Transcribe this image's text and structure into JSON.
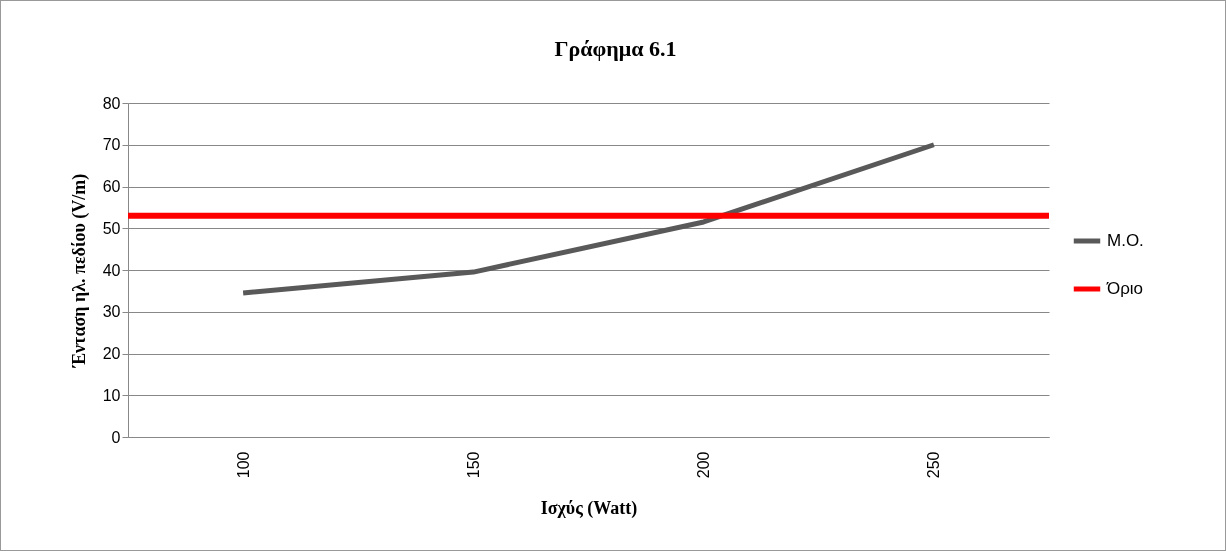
{
  "chart_data": {
    "type": "line",
    "title": "Γράφημα 6.1",
    "xlabel": "Ισχύς (Watt)",
    "ylabel": "Ένταση ηλ. πεδίου (V/m)",
    "categories": [
      "100",
      "150",
      "200",
      "250"
    ],
    "series": [
      {
        "name": "Μ.Ο.",
        "color": "#595959",
        "values": [
          34.5,
          39.5,
          51.5,
          70
        ]
      }
    ],
    "ref_lines": [
      {
        "axis": "y",
        "value": 53,
        "label": "Όριο",
        "color": "#ff0000"
      }
    ],
    "ylim": [
      0,
      80
    ],
    "yticks": [
      0,
      10,
      20,
      30,
      40,
      50,
      60,
      70,
      80
    ],
    "grid": "y",
    "legend": "right",
    "marker": "none"
  }
}
